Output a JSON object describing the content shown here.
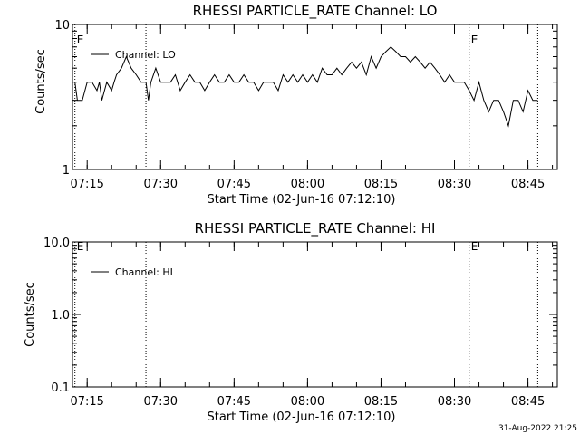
{
  "footer": {
    "timestamp": "31-Aug-2022 21:25"
  },
  "chart_data": [
    {
      "type": "line",
      "title": "RHESSI PARTICLE_RATE Channel: LO",
      "xlabel": "Start Time (02-Jun-16 07:12:10)",
      "ylabel": "Counts/sec",
      "y_scale": "log",
      "ylim": [
        1,
        10
      ],
      "xlim": [
        "07:12",
        "08:51"
      ],
      "x_tick_labels": [
        "07:15",
        "07:30",
        "07:45",
        "08:00",
        "08:15",
        "08:30",
        "08:45"
      ],
      "y_tick_labels": [
        "1",
        "10"
      ],
      "legend": {
        "entries": [
          "Channel: LO"
        ],
        "placement": "top-left"
      },
      "markers": [
        {
          "x": "07:12.5",
          "label": "E"
        },
        {
          "x": "07:27",
          "label": ""
        },
        {
          "x": "08:33",
          "label": "E"
        },
        {
          "x": "08:47",
          "label": ""
        }
      ],
      "series": [
        {
          "name": "Channel: LO",
          "x": [
            "07:12:30",
            "07:13",
            "07:14",
            "07:15",
            "07:16",
            "07:17",
            "07:17:30",
            "07:18",
            "07:19",
            "07:20",
            "07:20:30",
            "07:21",
            "07:22",
            "07:23",
            "07:24",
            "07:25",
            "07:26",
            "07:27",
            "07:27:30",
            "07:28",
            "07:29",
            "07:30",
            "07:31",
            "07:32",
            "07:33",
            "07:34",
            "07:35",
            "07:36",
            "07:37",
            "07:38",
            "07:39",
            "07:40",
            "07:41",
            "07:42",
            "07:43",
            "07:44",
            "07:45",
            "07:46",
            "07:47",
            "07:48",
            "07:49",
            "07:50",
            "07:51",
            "07:52",
            "07:53",
            "07:54",
            "07:55",
            "07:56",
            "07:57",
            "07:58",
            "07:59",
            "08:00",
            "08:01",
            "08:02",
            "08:03",
            "08:04",
            "08:05",
            "08:06",
            "08:07",
            "08:08",
            "08:09",
            "08:10",
            "08:11",
            "08:12",
            "08:13",
            "08:14",
            "08:15",
            "08:16",
            "08:17",
            "08:18",
            "08:19",
            "08:20",
            "08:21",
            "08:22",
            "08:23",
            "08:24",
            "08:25",
            "08:26",
            "08:27",
            "08:28",
            "08:29",
            "08:30",
            "08:31",
            "08:32",
            "08:33",
            "08:34",
            "08:35",
            "08:36",
            "08:37",
            "08:38",
            "08:39",
            "08:40",
            "08:41",
            "08:42",
            "08:43",
            "08:44",
            "08:45",
            "08:46",
            "08:47"
          ],
          "values": [
            4,
            3,
            3,
            4,
            4,
            3.5,
            4,
            3,
            4,
            3.5,
            4,
            4.5,
            5,
            6,
            5,
            4.5,
            4,
            4,
            3,
            4,
            5,
            4,
            4,
            4,
            4.5,
            3.5,
            4,
            4.5,
            4,
            4,
            3.5,
            4,
            4.5,
            4,
            4,
            4.5,
            4,
            4,
            4.5,
            4,
            4,
            3.5,
            4,
            4,
            4,
            3.5,
            4.5,
            4,
            4.5,
            4,
            4.5,
            4,
            4.5,
            4,
            5,
            4.5,
            4.5,
            5,
            4.5,
            5,
            5.5,
            5,
            5.5,
            4.5,
            6,
            5,
            6,
            6.5,
            7,
            6.5,
            6,
            6,
            5.5,
            6,
            5.5,
            5,
            5.5,
            5,
            4.5,
            4,
            4.5,
            4,
            4,
            4,
            3.5,
            3,
            4,
            3,
            2.5,
            3,
            3,
            2.5,
            2,
            3,
            3,
            2.5,
            3.5,
            3,
            3
          ]
        }
      ]
    },
    {
      "type": "line",
      "title": "RHESSI PARTICLE_RATE Channel: HI",
      "xlabel": "Start Time (02-Jun-16 07:12:10)",
      "ylabel": "Counts/sec",
      "y_scale": "log",
      "ylim": [
        0.1,
        10
      ],
      "xlim": [
        "07:12",
        "08:51"
      ],
      "x_tick_labels": [
        "07:15",
        "07:30",
        "07:45",
        "08:00",
        "08:15",
        "08:30",
        "08:45"
      ],
      "y_tick_labels": [
        "0.1",
        "1.0",
        "10.0"
      ],
      "legend": {
        "entries": [
          "Channel: HI"
        ],
        "placement": "top-left"
      },
      "markers": [
        {
          "x": "07:12.5",
          "label": "E"
        },
        {
          "x": "07:27",
          "label": ""
        },
        {
          "x": "08:33",
          "label": "E"
        },
        {
          "x": "08:47",
          "label": ""
        }
      ],
      "series": [
        {
          "name": "Channel: HI",
          "x": [],
          "values": []
        }
      ]
    }
  ]
}
